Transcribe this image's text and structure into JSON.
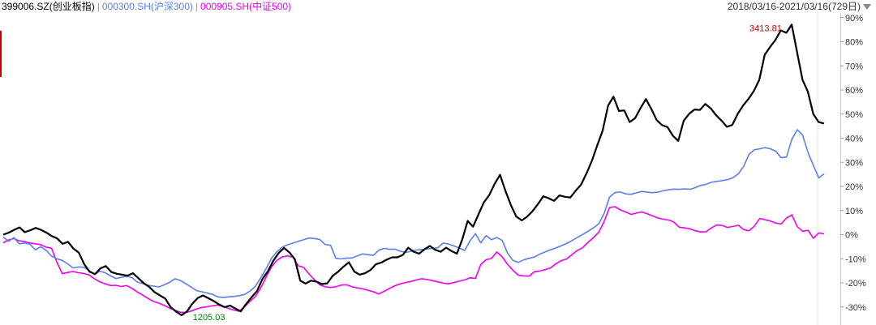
{
  "header": {
    "series_labels": [
      {
        "text": "399006.SZ(创业板指)",
        "color": "#000000"
      },
      {
        "text": "000300.SH(沪深300)",
        "color": "#5b7fe8"
      },
      {
        "text": "000905.SH(中证500)",
        "color": "#ee00ee"
      }
    ],
    "date_range": "2018/03/16-2021/03/16(729日)"
  },
  "chart_data": {
    "type": "line",
    "x_range": [
      "2018-03-16",
      "2021-03-16"
    ],
    "ylim": [
      -33,
      91
    ],
    "y_ticks": [
      "90%",
      "80%",
      "70%",
      "60%",
      "50%",
      "40%",
      "30%",
      "20%",
      "10%",
      "0%",
      "-10%",
      "-20%",
      "-30%"
    ],
    "y_tick_values": [
      90,
      80,
      70,
      60,
      50,
      40,
      30,
      20,
      10,
      0,
      -10,
      -20,
      -30
    ],
    "grid": false,
    "annotations": [
      {
        "text": "3413.81",
        "color": "#cc0000"
      },
      {
        "text": "1205.03",
        "color": "#008000"
      }
    ],
    "series": [
      {
        "name": "399006.SZ(创业板指)",
        "color": "#000000",
        "values": [
          0,
          0.8,
          2,
          3,
          1,
          1.8,
          2.8,
          2,
          0.8,
          -0.6,
          -1.6,
          -3.8,
          -3,
          -5.8,
          -7.5,
          -12.3,
          -15.4,
          -16.4,
          -14,
          -13,
          -15.5,
          -16.2,
          -16.6,
          -17,
          -16,
          -18,
          -20.1,
          -21.6,
          -23.8,
          -25.2,
          -26.5,
          -30.1,
          -31.9,
          -33.4,
          -31.9,
          -28.7,
          -26.3,
          -25.2,
          -26.4,
          -27.6,
          -29,
          -30.1,
          -29.4,
          -30.7,
          -31.8,
          -28.7,
          -25.9,
          -23.4,
          -18.4,
          -15.2,
          -10.9,
          -7.6,
          -5.5,
          -7.4,
          -10.2,
          -19.1,
          -20.3,
          -19.1,
          -19.5,
          -20.5,
          -20.2,
          -17.1,
          -15.4,
          -13.3,
          -11.5,
          -15.3,
          -16.6,
          -16,
          -14.7,
          -12.3,
          -11.6,
          -10.4,
          -9.4,
          -9.4,
          -8.4,
          -5.4,
          -7.1,
          -7.9,
          -6.1,
          -4.7,
          -6.3,
          -7.1,
          -5.4,
          -6.8,
          -7.9,
          -2,
          5.7,
          3.3,
          8.4,
          13.4,
          16.4,
          21.1,
          24.8,
          18.1,
          12.3,
          7.5,
          5.9,
          7.4,
          9.7,
          12.6,
          15.9,
          15.1,
          14,
          16.3,
          15.7,
          15.4,
          18.2,
          20.7,
          25.4,
          30.6,
          37.1,
          43.1,
          53.5,
          57.2,
          51.3,
          51.5,
          46.7,
          48.3,
          52.4,
          56.2,
          52.2,
          47.5,
          45.4,
          44.6,
          41,
          38.9,
          47.2,
          50.1,
          51.9,
          51.7,
          54.2,
          52.4,
          49.5,
          47.3,
          44.7,
          45.5,
          50.1,
          53.5,
          56.3,
          59.6,
          64.2,
          74.6,
          77.8,
          80.8,
          84.7,
          83.7,
          87.1,
          75.7,
          64.2,
          59.3,
          50,
          46.7,
          46.1
        ]
      },
      {
        "name": "000300.SH(沪深300)",
        "color": "#5b7fe8",
        "values": [
          -1,
          -2.8,
          -1.2,
          -3.8,
          -3.5,
          -4,
          -6.3,
          -5,
          -6.5,
          -8.9,
          -10,
          -10.7,
          -12.1,
          -13.8,
          -13.4,
          -13.5,
          -14.9,
          -16.4,
          -15.2,
          -15.8,
          -17.1,
          -18.2,
          -17.7,
          -17.3,
          -17.8,
          -19.7,
          -20.3,
          -21,
          -21.3,
          -21.7,
          -20.8,
          -19.8,
          -18.3,
          -19,
          -20.3,
          -21.7,
          -23.2,
          -23.7,
          -24.2,
          -24.8,
          -25.8,
          -26.1,
          -25.8,
          -25.6,
          -25.3,
          -24.8,
          -23.4,
          -21.4,
          -17.9,
          -14.1,
          -9.8,
          -7.1,
          -5.2,
          -4.2,
          -3.5,
          -2.8,
          -2.1,
          -1.4,
          -1.6,
          -2,
          -4.1,
          -4.4,
          -9.8,
          -10.1,
          -9.7,
          -9.7,
          -8.8,
          -8,
          -8.3,
          -8.6,
          -6.5,
          -5.7,
          -6.1,
          -6,
          -6.9,
          -7.4,
          -6.9,
          -6.4,
          -6.2,
          -5.9,
          -5.7,
          -5.4,
          -3.5,
          -3.9,
          -4.7,
          -5.5,
          -6.6,
          -2.6,
          0.4,
          -3.4,
          -0.4,
          -2.1,
          -1.2,
          -2.4,
          -7.7,
          -10.7,
          -11.5,
          -10.5,
          -9.8,
          -9.3,
          -8.1,
          -7.2,
          -6.3,
          -5.5,
          -4.6,
          -3.7,
          -2.5,
          -1.2,
          0.1,
          1.4,
          2.8,
          4.5,
          8.7,
          15.5,
          17.4,
          17.7,
          16.9,
          16.7,
          17.3,
          17.9,
          17.6,
          17.4,
          17.6,
          18.2,
          18.6,
          18.9,
          18.8,
          19,
          18.8,
          19.5,
          20.4,
          20.9,
          21.7,
          22.1,
          22.4,
          22.8,
          23.6,
          25.2,
          28.3,
          33.3,
          35.2,
          35.6,
          36.1,
          35.6,
          34.6,
          31.9,
          32.2,
          39.6,
          43.5,
          41.3,
          34,
          28.7,
          23.5,
          25.2
        ]
      },
      {
        "name": "000905.SH(中证500)",
        "color": "#ee00ee",
        "values": [
          -3.4,
          -2.2,
          -1.6,
          -2.6,
          -2.9,
          -3.5,
          -3.8,
          -4.2,
          -5.2,
          -5.6,
          -11.4,
          -16.2,
          -15.7,
          -15.3,
          -15.8,
          -16.1,
          -16.7,
          -18.3,
          -19.6,
          -20.4,
          -21.1,
          -21,
          -21.5,
          -21.1,
          -22.3,
          -23.8,
          -25.1,
          -26.5,
          -27.7,
          -28.4,
          -29.3,
          -30.5,
          -31.4,
          -32.2,
          -32.3,
          -31.7,
          -30.9,
          -30.2,
          -29.9,
          -29.5,
          -29.2,
          -29.9,
          -30.6,
          -31.3,
          -31.8,
          -29.9,
          -27.6,
          -25.7,
          -22.1,
          -17.6,
          -13.4,
          -10.7,
          -9.2,
          -8.8,
          -9.4,
          -12.9,
          -13.6,
          -16.3,
          -18.7,
          -20.8,
          -21.6,
          -21.9,
          -21.6,
          -20.9,
          -20.8,
          -21.6,
          -22.1,
          -22.5,
          -23.1,
          -23.7,
          -24.6,
          -23.5,
          -22.3,
          -21.2,
          -20.4,
          -19.9,
          -19.4,
          -18.8,
          -18.3,
          -18.6,
          -19.1,
          -19.6,
          -20.1,
          -20.4,
          -19.9,
          -19.3,
          -18.8,
          -17.9,
          -18.2,
          -12.4,
          -10.4,
          -9.9,
          -7.2,
          -9.2,
          -12.3,
          -14.8,
          -16.8,
          -17.1,
          -17.2,
          -15.4,
          -15.1,
          -14.5,
          -13.8,
          -12.1,
          -10.8,
          -10.1,
          -8.3,
          -6.6,
          -5.4,
          -3.2,
          -1.2,
          1,
          5.4,
          11.2,
          11.6,
          10.3,
          9.4,
          8.4,
          8.9,
          9.4,
          8.7,
          7.8,
          6.9,
          6.4,
          6.1,
          5.2,
          3.1,
          2.8,
          2.4,
          1.6,
          1.1,
          1.2,
          2.8,
          4,
          3.8,
          3,
          3.4,
          3.9,
          2.1,
          1.6,
          3.5,
          6.7,
          6.2,
          5.6,
          4.8,
          4.4,
          6.9,
          8.2,
          3.3,
          1.4,
          1.8,
          -1.5,
          0.7,
          0.3
        ]
      }
    ]
  }
}
